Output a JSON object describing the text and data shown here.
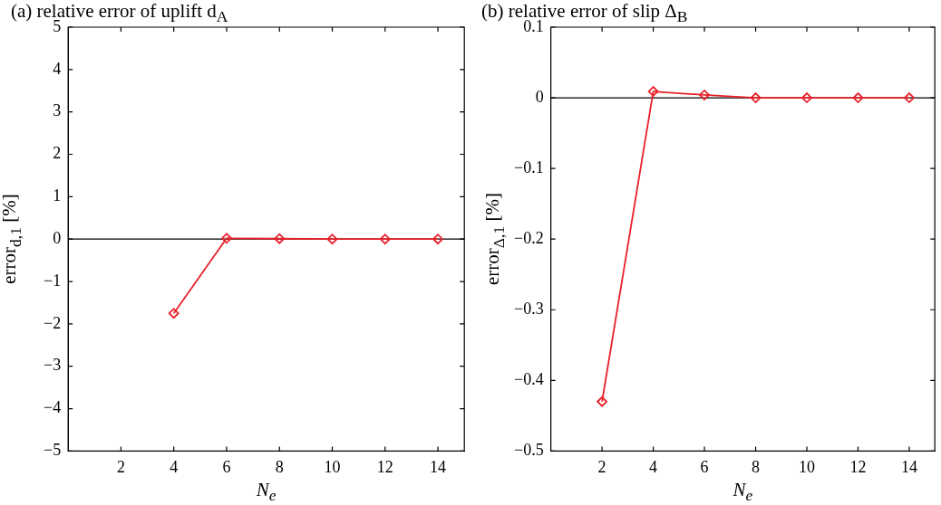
{
  "chart_data": [
    {
      "type": "line",
      "title": "(a) relative error of uplift d$_{A}$",
      "xlabel": "N$_{e}$",
      "ylabel": "error$_{d,1}$ [%]",
      "marker": "diamond",
      "line_style": "solid",
      "grid": false,
      "legend": false,
      "series": [
        {
          "color": "#e8202a",
          "x": [
            4,
            6,
            8,
            10,
            12,
            14
          ],
          "values": [
            -1.75,
            0.02,
            0.01,
            0,
            0,
            0
          ]
        }
      ],
      "xlim": [
        0,
        15
      ],
      "xticks": [
        2,
        4,
        6,
        8,
        10,
        12,
        14
      ],
      "ylim": [
        -5,
        5
      ],
      "yticks": [
        {
          "value": -5,
          "label": "−5"
        },
        {
          "value": -4,
          "label": "−4"
        },
        {
          "value": -3,
          "label": "−3"
        },
        {
          "value": -2,
          "label": "−2"
        },
        {
          "value": -1,
          "label": "−1"
        },
        0,
        1,
        2,
        3,
        4,
        5
      ],
      "ref_lines": [
        {
          "axis": "y",
          "value": 0,
          "color": "#000000"
        }
      ]
    },
    {
      "type": "line",
      "title": "(b) relative error of slip Δ$_{B}$",
      "xlabel": "N$_{e}$",
      "ylabel": "error$_{Δ,1}$ [%]",
      "marker": "diamond",
      "line_style": "solid",
      "grid": false,
      "legend": false,
      "x": [
        2,
        4,
        6,
        8,
        10,
        12,
        14
      ],
      "series": [
        {
          "color": "#e8202a",
          "values": [
            -0.43,
            0.009,
            0.004,
            0,
            0,
            0,
            0
          ]
        }
      ],
      "xlim": [
        0,
        15
      ],
      "xticks": [
        2,
        4,
        6,
        8,
        10,
        12,
        14
      ],
      "ylim": [
        -0.5,
        0.1
      ],
      "yticks": [
        {
          "value": -0.5,
          "label": "−0.5"
        },
        {
          "value": -0.4,
          "label": "−0.4"
        },
        {
          "value": -0.3,
          "label": "−0.3"
        },
        {
          "value": -0.2,
          "label": "−0.2"
        },
        {
          "value": -0.1,
          "label": "−0.1"
        },
        0,
        0.1
      ],
      "ref_lines": [
        {
          "axis": "y",
          "value": 0,
          "color": "#000000"
        }
      ]
    }
  ]
}
